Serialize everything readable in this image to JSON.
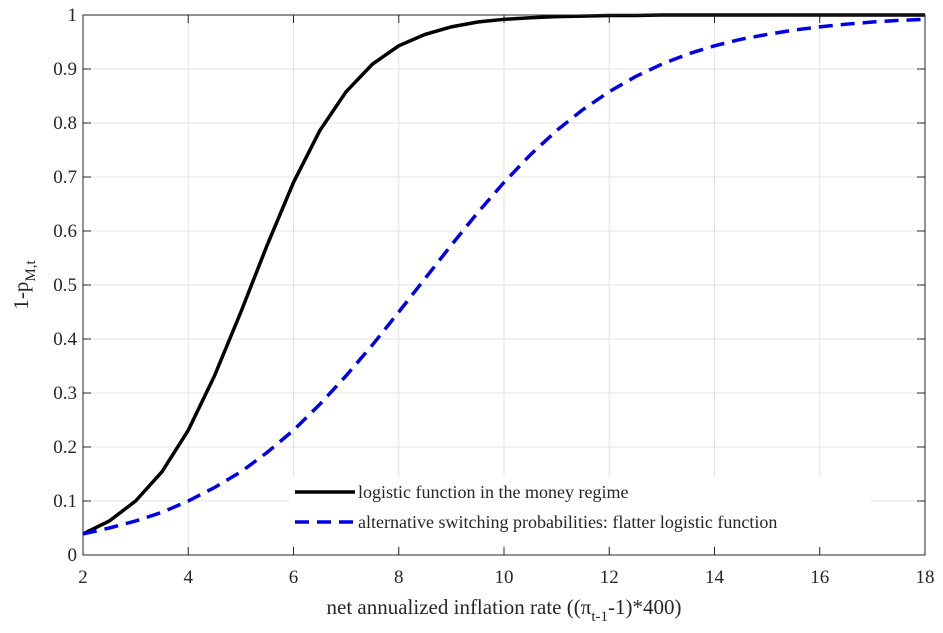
{
  "chart_data": {
    "type": "line",
    "xlabel": [
      "net annualized inflation rate ((π",
      "t-1",
      "-1)*400)"
    ],
    "ylabel": [
      "1-p",
      "M,t"
    ],
    "x": [
      2,
      2.5,
      3,
      3.5,
      4,
      4.5,
      5,
      5.5,
      6,
      6.5,
      7,
      7.5,
      8,
      8.5,
      9,
      9.5,
      10,
      10.5,
      11,
      11.5,
      12,
      12.5,
      13,
      13.5,
      14,
      14.5,
      15,
      15.5,
      16,
      16.5,
      17,
      17.5,
      18
    ],
    "series": [
      {
        "name": "logistic function in the money regime",
        "color": "#000000",
        "dash": false,
        "values": [
          0.039,
          0.063,
          0.1,
          0.154,
          0.231,
          0.332,
          0.45,
          0.574,
          0.69,
          0.786,
          0.858,
          0.909,
          0.943,
          0.964,
          0.978,
          0.987,
          0.992,
          0.995,
          0.997,
          0.998,
          0.999,
          0.999,
          1,
          1,
          1,
          1,
          1,
          1,
          1,
          1,
          1,
          1,
          1
        ]
      },
      {
        "name": "alternative switching probabilities: flatter logistic function",
        "color": "#0000e6",
        "dash": true,
        "values": [
          0.039,
          0.05,
          0.063,
          0.079,
          0.1,
          0.125,
          0.154,
          0.19,
          0.231,
          0.279,
          0.332,
          0.389,
          0.45,
          0.512,
          0.574,
          0.634,
          0.69,
          0.741,
          0.786,
          0.825,
          0.858,
          0.886,
          0.909,
          0.928,
          0.943,
          0.955,
          0.964,
          0.972,
          0.978,
          0.983,
          0.987,
          0.99,
          0.992
        ]
      }
    ],
    "xlim": [
      2,
      18
    ],
    "ylim": [
      0,
      1
    ],
    "xticks": [
      2,
      4,
      6,
      8,
      10,
      12,
      14,
      16,
      18
    ],
    "yticks": [
      0,
      0.1,
      0.2,
      0.3,
      0.4,
      0.5,
      0.6,
      0.7,
      0.8,
      0.9,
      1
    ],
    "grid": true,
    "legend": "lower center"
  }
}
